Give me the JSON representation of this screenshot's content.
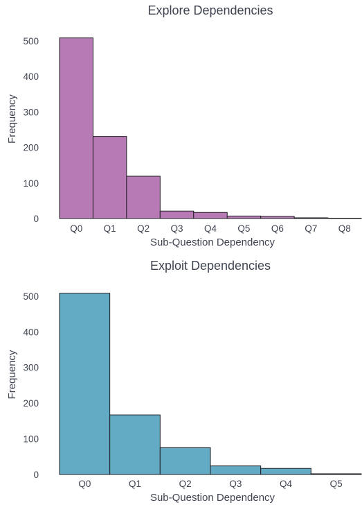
{
  "chart_data": [
    {
      "type": "bar",
      "title": "Explore Dependencies",
      "xlabel": "Sub-Question Dependency",
      "ylabel": "Frequency",
      "categories": [
        "Q0",
        "Q1",
        "Q2",
        "Q3",
        "Q4",
        "Q5",
        "Q6",
        "Q7",
        "Q8"
      ],
      "values": [
        508,
        231,
        119,
        21,
        17,
        7,
        6,
        2,
        1
      ],
      "yticks": [
        0,
        100,
        200,
        300,
        400,
        500
      ],
      "ylim": [
        0,
        560
      ],
      "color": "#b87ab4",
      "grid": false
    },
    {
      "type": "bar",
      "title": "Exploit Dependencies",
      "xlabel": "Sub-Question Dependency",
      "ylabel": "Frequency",
      "categories": [
        "Q0",
        "Q1",
        "Q2",
        "Q3",
        "Q4",
        "Q5"
      ],
      "values": [
        508,
        167,
        75,
        24,
        17,
        2
      ],
      "yticks": [
        0,
        100,
        200,
        300,
        400,
        500
      ],
      "ylim": [
        0,
        560
      ],
      "color": "#63aac4",
      "grid": false
    }
  ]
}
